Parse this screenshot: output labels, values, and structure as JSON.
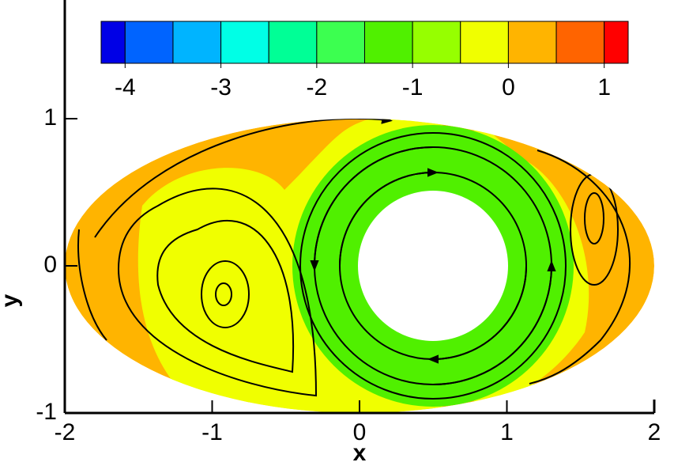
{
  "chart_data": {
    "type": "contour",
    "x_label": "x",
    "y_label": "y",
    "xlim": [
      -2,
      2
    ],
    "ylim": [
      -1,
      1.8
    ],
    "xticks": [
      -2,
      -1,
      0,
      1,
      2
    ],
    "yticks": [
      -1,
      0,
      1
    ],
    "colorbar": {
      "clim": [
        -4.25,
        1.25
      ],
      "levels": [
        -4,
        -3.5,
        -3,
        -2.5,
        -2,
        -1.5,
        -1,
        -0.5,
        0,
        0.5,
        1
      ],
      "colors": [
        "#0000e6",
        "#0064ff",
        "#00b4ff",
        "#00ffe6",
        "#00ff96",
        "#3cff50",
        "#50f000",
        "#96ff00",
        "#f0ff00",
        "#ffb400",
        "#ff6400",
        "#ff0000"
      ],
      "ticks": [
        -4,
        -3,
        -2,
        -1,
        0,
        1
      ]
    }
  }
}
